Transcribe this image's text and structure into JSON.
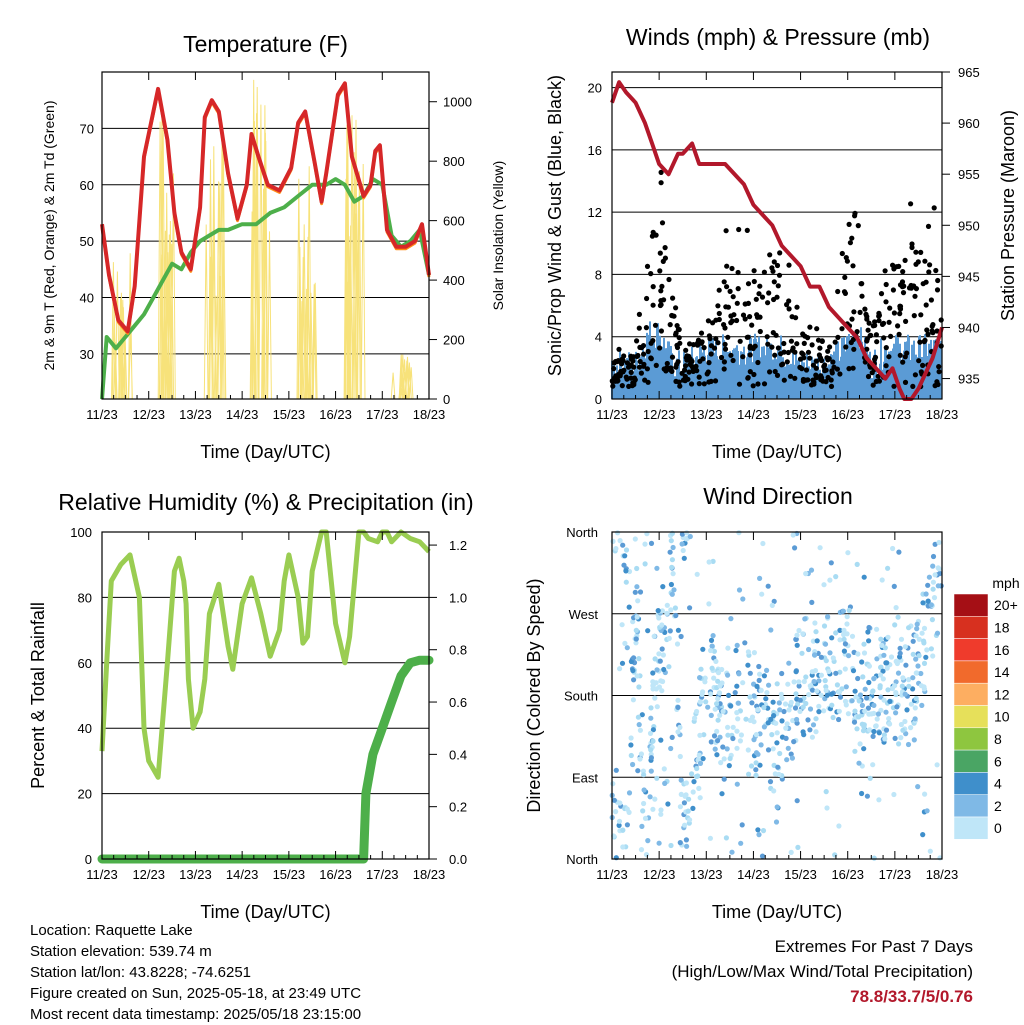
{
  "x_ticks": [
    "11/23",
    "12/23",
    "13/23",
    "14/23",
    "15/23",
    "16/23",
    "17/23",
    "18/23"
  ],
  "info": {
    "location": "Location: Raquette Lake",
    "elevation": "Station elevation: 539.74 m",
    "latlon": "Station lat/lon: 43.8228; -74.6251",
    "created": "Figure created on Sun, 2025-05-18, at 23:49 UTC",
    "recent": "Most recent data timestamp: 2025/05/18 23:15:00"
  },
  "extremes": {
    "title": "Extremes For Past 7 Days",
    "subtitle": "(High/Low/Max Wind/Total Precipitation)",
    "values": "78.8/33.7/5/0.76"
  },
  "colors": {
    "temp_red": "#d62728",
    "temp_orange": "#ff8c1a",
    "dewpoint_green": "#4daf4a",
    "insolation_yellow": "#f7e27a",
    "gust_black": "#000000",
    "wind_blue": "#5b9bd5",
    "pressure_maroon": "#b2182b",
    "rh_lightgreen": "#9acd52",
    "precip_green": "#4daf4a"
  },
  "chart_data": [
    {
      "type": "line",
      "title": "Temperature (F)",
      "xlabel": "Time (Day/UTC)",
      "ylabel": "2m & 9m T (Red, Orange) & 2m Td (Green)",
      "y2label": "Solar Insolation (Yellow)",
      "xlim": [
        0,
        7
      ],
      "ylim": [
        22,
        80
      ],
      "y2lim": [
        0,
        1100
      ],
      "yticks": [
        30,
        40,
        50,
        60,
        70
      ],
      "y2ticks": [
        0,
        200,
        400,
        600,
        800,
        1000
      ],
      "series": [
        {
          "key": "temp",
          "x": [
            0,
            0.15,
            0.35,
            0.55,
            0.7,
            0.9,
            1.2,
            1.4,
            1.55,
            1.7,
            1.9,
            2.1,
            2.2,
            2.35,
            2.5,
            2.7,
            2.9,
            3.1,
            3.2,
            3.35,
            3.55,
            3.8,
            4.05,
            4.2,
            4.35,
            4.55,
            4.7,
            4.8,
            5.05,
            5.2,
            5.35,
            5.6,
            5.75,
            5.85,
            5.95,
            6.1,
            6.3,
            6.5,
            6.7,
            6.85,
            7.0
          ],
          "y": [
            53,
            44,
            36,
            34,
            42,
            65,
            77,
            68,
            55,
            48,
            45,
            56,
            72,
            75,
            73,
            62,
            54,
            60,
            69,
            65,
            60,
            59,
            63,
            71,
            73,
            64,
            57,
            62,
            76,
            78,
            65,
            58,
            60,
            66,
            67,
            52,
            49,
            49,
            50,
            53,
            44
          ]
        },
        {
          "key": "dewpoint",
          "x": [
            0,
            0.1,
            0.3,
            0.5,
            0.7,
            0.9,
            1.1,
            1.3,
            1.5,
            1.7,
            1.9,
            2.1,
            2.3,
            2.5,
            2.7,
            3.0,
            3.3,
            3.6,
            3.9,
            4.2,
            4.5,
            4.8,
            5.0,
            5.2,
            5.4,
            5.6,
            5.8,
            6.0,
            6.2,
            6.4,
            6.6,
            6.8,
            7.0
          ],
          "y": [
            22,
            33,
            31,
            33,
            35,
            37,
            40,
            43,
            46,
            45,
            48,
            50,
            51,
            52,
            52,
            53,
            53,
            55,
            56,
            58,
            60,
            60,
            61,
            60,
            57,
            58,
            61,
            60,
            51,
            49,
            50,
            52,
            44
          ]
        },
        {
          "key": "insolation",
          "x": [
            0.42,
            1.42,
            2.42,
            3.42,
            4.42,
            5.42,
            6.42
          ],
          "y": [
            500,
            980,
            950,
            1080,
            880,
            1000,
            150
          ]
        }
      ]
    },
    {
      "type": "scatter",
      "title": "Winds (mph) & Pressure (mb)",
      "xlabel": "Time (Day/UTC)",
      "ylabel": "Sonic/Prop Wind & Gust (Blue, Black)",
      "y2label": "Station Pressure (Maroon)",
      "xlim": [
        0,
        7
      ],
      "ylim": [
        0,
        21
      ],
      "y2lim": [
        933,
        965
      ],
      "yticks": [
        0,
        4,
        8,
        12,
        16,
        20
      ],
      "y2ticks": [
        935,
        940,
        945,
        950,
        955,
        960,
        965
      ],
      "series": [
        {
          "key": "pressure",
          "x": [
            0,
            0.15,
            0.3,
            0.5,
            0.7,
            0.85,
            1.0,
            1.2,
            1.4,
            1.5,
            1.7,
            1.85,
            2.0,
            2.2,
            2.4,
            2.6,
            2.8,
            3.0,
            3.2,
            3.4,
            3.6,
            3.8,
            4.0,
            4.2,
            4.4,
            4.6,
            4.8,
            5.0,
            5.2,
            5.4,
            5.6,
            5.8,
            5.95,
            6.1,
            6.2,
            6.35,
            6.5,
            6.6,
            6.8,
            7.0
          ],
          "y": [
            962,
            964,
            963,
            962,
            960,
            958,
            956,
            955,
            957,
            957,
            958,
            956,
            956,
            956,
            956,
            955,
            954,
            952,
            951,
            950,
            948,
            947,
            946,
            944,
            944,
            942,
            941,
            940,
            939,
            937,
            936,
            935,
            936,
            934,
            933,
            933,
            934,
            935,
            937,
            940
          ]
        },
        {
          "key": "gust_envelope",
          "x": [
            0,
            0.5,
            0.8,
            1.0,
            1.3,
            1.6,
            2.0,
            2.4,
            2.8,
            3.2,
            3.6,
            3.9,
            4.2,
            4.6,
            4.9,
            5.2,
            5.5,
            5.8,
            6.0,
            6.4,
            6.8,
            7.0
          ],
          "y": [
            2,
            2,
            10,
            12,
            5,
            2,
            4,
            8,
            8,
            9,
            8,
            4,
            3,
            3,
            8,
            12,
            3,
            8,
            9,
            9,
            9,
            8
          ]
        },
        {
          "key": "wind",
          "x": [
            0,
            0.5,
            0.8,
            1.0,
            1.3,
            1.6,
            2.0,
            2.4,
            2.8,
            3.2,
            3.6,
            3.9,
            4.2,
            4.6,
            4.9,
            5.2,
            5.5,
            5.8,
            6.0,
            6.4,
            6.8,
            7.0
          ],
          "y": [
            1,
            1,
            3,
            3,
            1,
            1,
            2,
            2,
            2,
            2,
            2,
            1,
            1,
            1,
            2,
            3,
            1,
            2,
            2,
            2,
            2,
            2
          ]
        }
      ]
    },
    {
      "type": "line",
      "title": "Relative Humidity (%) & Precipitation (in)",
      "xlabel": "Time (Day/UTC)",
      "ylabel": "Percent & Total Rainfall",
      "xlim": [
        0,
        7
      ],
      "ylim": [
        0,
        100
      ],
      "y2lim": [
        0,
        1.25
      ],
      "yticks": [
        0,
        20,
        40,
        60,
        80,
        100
      ],
      "y2ticks": [
        0.0,
        0.2,
        0.4,
        0.6,
        0.8,
        1.0,
        1.2
      ],
      "series": [
        {
          "key": "rh",
          "x": [
            0,
            0.1,
            0.2,
            0.4,
            0.6,
            0.8,
            0.9,
            1.0,
            1.2,
            1.4,
            1.55,
            1.65,
            1.75,
            1.8,
            1.85,
            1.95,
            2.1,
            2.2,
            2.3,
            2.5,
            2.7,
            2.8,
            3.0,
            3.2,
            3.4,
            3.6,
            3.8,
            3.9,
            4.0,
            4.2,
            4.3,
            4.4,
            4.5,
            4.7,
            4.8,
            5.0,
            5.2,
            5.3,
            5.5,
            5.6,
            5.7,
            5.9,
            6.0,
            6.1,
            6.2,
            6.4,
            6.6,
            6.8,
            7.0
          ],
          "y": [
            33,
            60,
            85,
            90,
            93,
            80,
            40,
            30,
            25,
            60,
            88,
            92,
            85,
            78,
            55,
            40,
            45,
            55,
            75,
            84,
            65,
            58,
            78,
            86,
            75,
            62,
            70,
            85,
            93,
            80,
            66,
            68,
            88,
            100,
            100,
            72,
            60,
            68,
            100,
            100,
            98,
            97,
            100,
            100,
            97,
            100,
            98,
            97,
            94
          ]
        },
        {
          "key": "precip",
          "x": [
            0,
            1,
            2,
            3,
            4,
            5,
            5.6,
            5.65,
            5.8,
            6.0,
            6.2,
            6.4,
            6.6,
            6.8,
            7.0
          ],
          "y": [
            0,
            0,
            0,
            0,
            0,
            0,
            0,
            0.25,
            0.4,
            0.5,
            0.6,
            0.7,
            0.75,
            0.76,
            0.76
          ]
        }
      ]
    },
    {
      "type": "scatter",
      "title": "Wind Direction",
      "xlabel": "Time (Day/UTC)",
      "ylabel": "Direction (Colored By Speed)",
      "xlim": [
        0,
        7
      ],
      "yticklabels": [
        "North",
        "East",
        "South",
        "West",
        "North"
      ],
      "colorbar_unit": "mph",
      "colorbar_labels": [
        "20+",
        "18",
        "16",
        "14",
        "12",
        "10",
        "8",
        "6",
        "4",
        "2",
        "0"
      ],
      "colorbar_colors": [
        "#a50f15",
        "#d7301f",
        "#ef3b2c",
        "#f16a2c",
        "#fdae61",
        "#e6e05a",
        "#8ec63f",
        "#4aa564",
        "#3f8fcb",
        "#7fb9e6",
        "#bfe6f8"
      ],
      "series": [
        {
          "key": "direction",
          "x": [
            0.1,
            0.3,
            0.5,
            0.7,
            0.9,
            1.1,
            1.3,
            1.5,
            2.0,
            2.2,
            2.5,
            2.8,
            3.0,
            3.2,
            3.5,
            4.0,
            4.2,
            4.5,
            5.0,
            5.2,
            5.4,
            6.0,
            6.2,
            6.5,
            6.8,
            7.0
          ],
          "y": [
            30,
            10,
            300,
            20,
            200,
            250,
            340,
            15,
            190,
            170,
            150,
            200,
            140,
            170,
            110,
            200,
            180,
            210,
            220,
            190,
            200,
            180,
            190,
            210,
            280,
            320
          ]
        }
      ]
    }
  ]
}
